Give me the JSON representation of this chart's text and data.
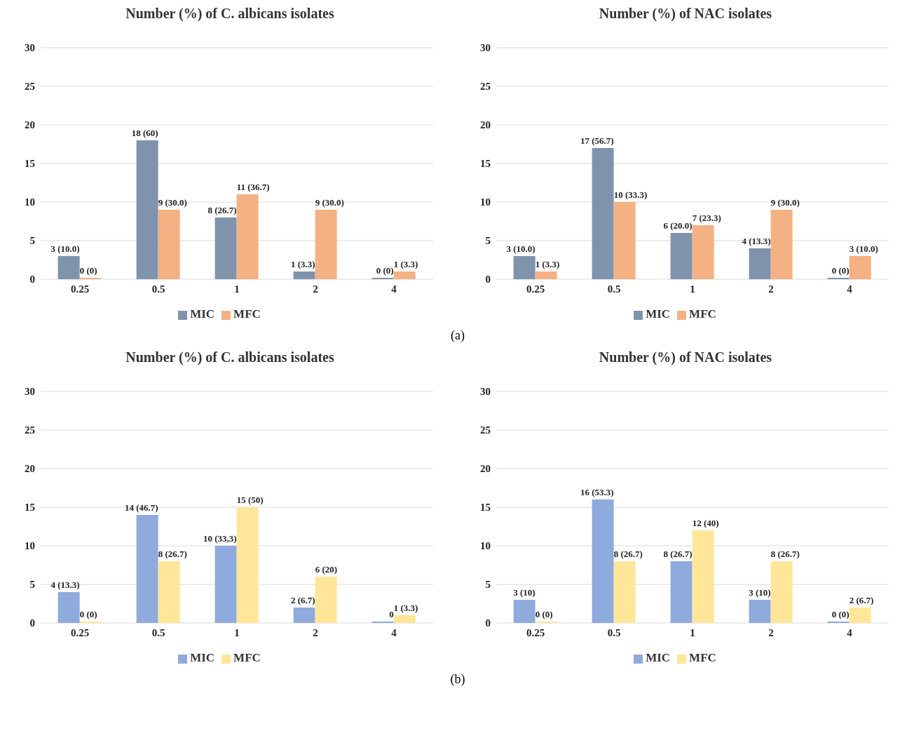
{
  "chart_data": [
    {
      "type": "bar",
      "title": "Number (%) of C. albicans isolates",
      "categories": [
        "0.25",
        "0.5",
        "1",
        "2",
        "4"
      ],
      "ylim": [
        0,
        30
      ],
      "yticks": [
        0,
        5,
        10,
        15,
        20,
        25,
        30
      ],
      "grid": "y",
      "legend": "bottom",
      "series": [
        {
          "name": "MIC",
          "color": "#7f93ad",
          "values": [
            3,
            18,
            8,
            1,
            0
          ],
          "value_labels": [
            "3 (10.0)",
            "18 (60)",
            "8 (26.7)",
            "1 (3.3)",
            "0 (0)"
          ]
        },
        {
          "name": "MFC",
          "color": "#f4b183",
          "values": [
            0,
            9,
            11,
            9,
            1
          ],
          "value_labels": [
            "0 (0)",
            "9 (30.0)",
            "11 (36.7)",
            "9 (30.0)",
            "1 (3.3)"
          ]
        }
      ]
    },
    {
      "type": "bar",
      "title": "Number (%) of NAC isolates",
      "categories": [
        "0.25",
        "0.5",
        "1",
        "2",
        "4"
      ],
      "ylim": [
        0,
        30
      ],
      "yticks": [
        0,
        5,
        10,
        15,
        20,
        25,
        30
      ],
      "grid": "y",
      "legend": "bottom",
      "annotations": [
        "(a)"
      ],
      "series": [
        {
          "name": "MIC",
          "color": "#7f93ad",
          "values": [
            3,
            17,
            6,
            4,
            0
          ],
          "value_labels": [
            "3 (10.0)",
            "17 (56.7)",
            "6 (20.0)",
            "4 (13.3)",
            "0 (0)"
          ]
        },
        {
          "name": "MFC",
          "color": "#f4b183",
          "values": [
            1,
            10,
            7,
            9,
            3
          ],
          "value_labels": [
            "1 (3.3)",
            "10 (33.3)",
            "7 (23.3)",
            "9 (30.0)",
            "3 (10.0)"
          ]
        }
      ]
    },
    {
      "type": "bar",
      "title": "Number (%) of C. albicans isolates",
      "categories": [
        "0.25",
        "0.5",
        "1",
        "2",
        "4"
      ],
      "ylim": [
        0,
        30
      ],
      "yticks": [
        0,
        5,
        10,
        15,
        20,
        25,
        30
      ],
      "grid": "y",
      "legend": "bottom",
      "series": [
        {
          "name": "MIC",
          "color": "#8faadc",
          "values": [
            4,
            14,
            10,
            2,
            0
          ],
          "value_labels": [
            "4 (13.3)",
            "14 (46.7)",
            "10 (33,3)",
            "2 (6.7)",
            "0"
          ]
        },
        {
          "name": "MFC",
          "color": "#ffe699",
          "values": [
            0,
            8,
            15,
            6,
            1
          ],
          "value_labels": [
            "0 (0)",
            "8 (26.7)",
            "15 (50)",
            "6 (20)",
            "1 (3.3)"
          ]
        }
      ]
    },
    {
      "type": "bar",
      "title": "Number (%) of NAC isolates",
      "categories": [
        "0.25",
        "0.5",
        "1",
        "2",
        "4"
      ],
      "ylim": [
        0,
        30
      ],
      "yticks": [
        0,
        5,
        10,
        15,
        20,
        25,
        30
      ],
      "grid": "y",
      "legend": "bottom",
      "annotations": [
        "(b)"
      ],
      "series": [
        {
          "name": "MIC",
          "color": "#8faadc",
          "values": [
            3,
            16,
            8,
            3,
            0
          ],
          "value_labels": [
            "3 (10)",
            "16 (53.3)",
            "8 (26.7)",
            "3 (10)",
            "0 (0)"
          ]
        },
        {
          "name": "MFC",
          "color": "#ffe699",
          "values": [
            0,
            8,
            12,
            8,
            2
          ],
          "value_labels": [
            "0 (0)",
            "8 (26.7)",
            "12 (40)",
            "8 (26.7)",
            "2 (6.7)"
          ]
        }
      ]
    }
  ]
}
